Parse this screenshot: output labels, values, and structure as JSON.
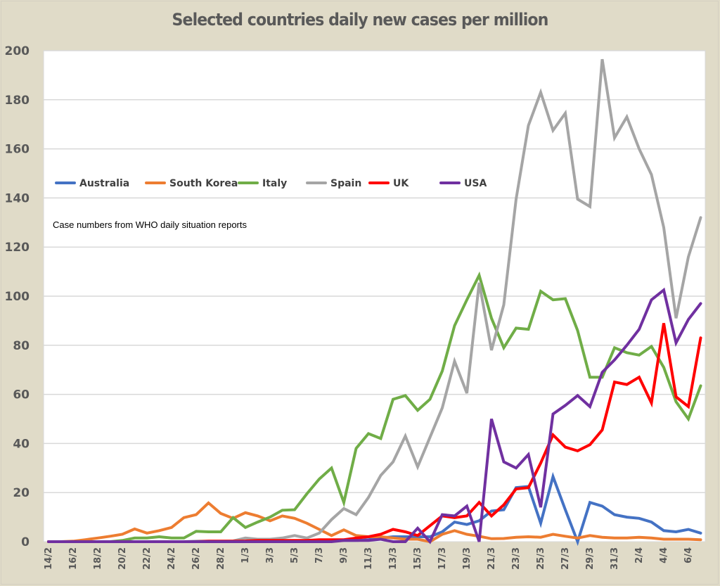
{
  "chart_data": {
    "type": "line",
    "title": "Selected countries daily new cases per million",
    "xlabel": "",
    "ylabel": "",
    "ylim": [
      0,
      200
    ],
    "yticks": [
      0,
      20,
      40,
      60,
      80,
      100,
      120,
      140,
      160,
      180,
      200
    ],
    "grid": true,
    "legend_position": "upper-left inside plot",
    "annotation": "Case numbers from WHO daily situation reports",
    "x": [
      "14/2",
      "15/2",
      "16/2",
      "17/2",
      "18/2",
      "19/2",
      "20/2",
      "21/2",
      "22/2",
      "23/2",
      "24/2",
      "25/2",
      "26/2",
      "27/2",
      "28/2",
      "29/2",
      "1/3",
      "2/3",
      "3/3",
      "4/3",
      "5/3",
      "6/3",
      "7/3",
      "8/3",
      "9/3",
      "10/3",
      "11/3",
      "12/3",
      "13/3",
      "14/3",
      "15/3",
      "16/3",
      "17/3",
      "18/3",
      "19/3",
      "20/3",
      "21/3",
      "22/3",
      "23/3",
      "24/3",
      "25/3",
      "26/3",
      "27/3",
      "28/3",
      "29/3",
      "30/3",
      "31/3",
      "1/4",
      "2/4",
      "3/4",
      "4/4",
      "5/4",
      "6/4",
      "7/4"
    ],
    "xtick_labels": [
      "14/2",
      "16/2",
      "18/2",
      "20/2",
      "22/2",
      "24/2",
      "26/2",
      "28/2",
      "1/3",
      "3/3",
      "5/3",
      "7/3",
      "9/3",
      "11/3",
      "13/3",
      "15/3",
      "17/3",
      "19/3",
      "21/3",
      "23/3",
      "25/3",
      "27/3",
      "29/3",
      "31/3",
      "2/4",
      "4/4",
      "6/4"
    ],
    "series": [
      {
        "name": "Australia",
        "color": "#4472c4",
        "values": [
          0,
          0,
          0,
          0,
          0,
          0,
          0,
          0,
          0,
          0,
          0,
          0,
          0,
          0,
          0,
          0,
          0,
          0,
          0,
          0,
          0.3,
          0.3,
          0.3,
          0.5,
          0.5,
          0.5,
          0.8,
          1.5,
          2,
          2,
          2,
          2,
          4,
          8,
          7,
          8.5,
          12.5,
          13,
          22,
          22.5,
          7.5,
          26.5,
          13,
          0,
          16,
          14.5,
          11,
          10,
          9.5,
          8,
          4.5,
          4,
          5,
          3.5
        ]
      },
      {
        "name": "South Korea",
        "color": "#ed7d31",
        "values": [
          0,
          0,
          0.2,
          0.8,
          1.5,
          2.2,
          3,
          5.2,
          3.5,
          4.5,
          5.8,
          9.8,
          11,
          15.8,
          11.5,
          9.5,
          11.8,
          10.5,
          8.5,
          10.5,
          9.5,
          7.5,
          5,
          2.5,
          4.8,
          2.5,
          2,
          2,
          1.5,
          1,
          1,
          0,
          3,
          4.5,
          3,
          2.2,
          1.2,
          1.3,
          1.8,
          2,
          1.8,
          3,
          2.2,
          1.5,
          2.5,
          1.8,
          1.5,
          1.5,
          1.8,
          1.5,
          1,
          1,
          1,
          0.8
        ]
      },
      {
        "name": "Italy",
        "color": "#70ad47",
        "values": [
          0,
          0,
          0,
          0,
          0,
          0,
          0.5,
          1.5,
          1.5,
          2,
          1.5,
          1.5,
          4.2,
          4,
          4,
          9.8,
          5.8,
          8,
          10,
          12.8,
          13,
          19.5,
          25.5,
          30,
          16,
          38,
          44,
          42,
          58,
          59.5,
          53.5,
          58,
          69.5,
          88,
          98.5,
          108.5,
          91,
          79,
          87,
          86.5,
          102,
          98.5,
          99,
          86,
          67,
          67,
          79,
          77,
          76,
          79.5,
          71,
          57,
          50,
          63.5
        ]
      },
      {
        "name": "Spain",
        "color": "#a5a5a5",
        "values": [
          0,
          0,
          0,
          0,
          0,
          0,
          0,
          0,
          0,
          0,
          0,
          0,
          0.2,
          0.2,
          0.2,
          0.3,
          1.5,
          1,
          1,
          1.5,
          2.5,
          1.5,
          3.5,
          9,
          13.5,
          11,
          18,
          27,
          32.5,
          43,
          30.5,
          42.5,
          54.5,
          73.5,
          60.5,
          105.5,
          78,
          96.5,
          139.5,
          169.5,
          183,
          167.5,
          174.5,
          139.5,
          136.5,
          196.5,
          164.5,
          173,
          160,
          149.5,
          128,
          91,
          116,
          132
        ]
      },
      {
        "name": "UK",
        "color": "#ff0000",
        "values": [
          0,
          0,
          0,
          0,
          0,
          0,
          0,
          0,
          0,
          0,
          0,
          0,
          0,
          0.2,
          0.2,
          0.2,
          0.3,
          0.5,
          0.5,
          0.5,
          0.5,
          0.5,
          0.8,
          0.8,
          0.8,
          1.5,
          2,
          3,
          5,
          4,
          2.5,
          6.5,
          10.5,
          9.8,
          10.5,
          16,
          10.5,
          15,
          21.5,
          22,
          32,
          43.5,
          38.5,
          37,
          39.5,
          45.5,
          65,
          64,
          67,
          56.5,
          89,
          59,
          55,
          83
        ]
      },
      {
        "name": "USA",
        "color": "#7030a0",
        "values": [
          0,
          0,
          0,
          0,
          0,
          0,
          0,
          0,
          0,
          0,
          0,
          0,
          0,
          0,
          0,
          0,
          0,
          0,
          0,
          0,
          0,
          0,
          0,
          0,
          0.5,
          0.5,
          0.5,
          1,
          0,
          0,
          5.5,
          0,
          11,
          10.5,
          14.5,
          0,
          50,
          32.5,
          30,
          35.5,
          14,
          52,
          55.5,
          59.5,
          55,
          69,
          74,
          80,
          86.5,
          98.5,
          102.5,
          81,
          90.5,
          97
        ]
      }
    ]
  }
}
